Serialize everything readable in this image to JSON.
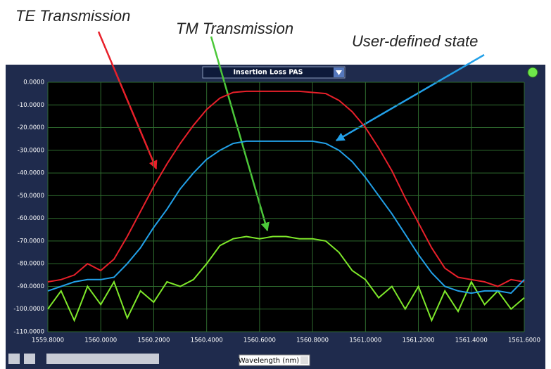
{
  "chart_data": {
    "type": "line",
    "plot_selector": "Insertion Loss PAS",
    "xlabel": "Wavelength (nm)",
    "x": [
      1559.8,
      1559.85,
      1559.9,
      1559.95,
      1560.0,
      1560.05,
      1560.1,
      1560.15,
      1560.2,
      1560.25,
      1560.3,
      1560.35,
      1560.4,
      1560.45,
      1560.5,
      1560.55,
      1560.6,
      1560.65,
      1560.7,
      1560.75,
      1560.8,
      1560.85,
      1560.9,
      1560.95,
      1561.0,
      1561.05,
      1561.1,
      1561.15,
      1561.2,
      1561.25,
      1561.3,
      1561.35,
      1561.4,
      1561.45,
      1561.5,
      1561.55,
      1561.6
    ],
    "series": [
      {
        "name": "TE Transmission",
        "color": "#e8202a",
        "values": [
          -88,
          -87,
          -85,
          -80,
          -83,
          -78,
          -68,
          -57,
          -46,
          -36,
          -27,
          -19,
          -12,
          -7,
          -4.5,
          -4,
          -4,
          -4,
          -4,
          -4,
          -4.5,
          -5,
          -8,
          -13,
          -20,
          -29,
          -39,
          -51,
          -62,
          -73,
          -82,
          -86,
          -87,
          -88,
          -90,
          -87,
          -88
        ]
      },
      {
        "name": "TM Transmission",
        "color": "#7ee82a",
        "values": [
          -100,
          -92,
          -105,
          -90,
          -98,
          -88,
          -104,
          -92,
          -97,
          -88,
          -90,
          -87,
          -80,
          -72,
          -69,
          -68,
          -69,
          -68,
          -68,
          -69,
          -69,
          -70,
          -75,
          -83,
          -87,
          -95,
          -90,
          -100,
          -90,
          -105,
          -92,
          -101,
          -88,
          -98,
          -92,
          -100,
          -95
        ]
      },
      {
        "name": "User-defined state",
        "color": "#22a0e8",
        "values": [
          -92,
          -90,
          -88,
          -87,
          -87,
          -86,
          -80,
          -73,
          -64,
          -56,
          -47,
          -40,
          -34,
          -30,
          -27,
          -26,
          -26,
          -26,
          -26,
          -26,
          -26,
          -27,
          -30,
          -35,
          -42,
          -50,
          -58,
          -67,
          -76,
          -84,
          -90,
          -92,
          -93,
          -92,
          -92,
          -93,
          -87
        ]
      }
    ],
    "xlim": [
      1559.8,
      1561.6
    ],
    "ylim": [
      -110,
      0
    ],
    "xticks": [
      {
        "value": 1559.8,
        "label": "1559.8000"
      },
      {
        "value": 1560.0,
        "label": "1560.0000"
      },
      {
        "value": 1560.2,
        "label": "1560.2000"
      },
      {
        "value": 1560.4,
        "label": "1560.4000"
      },
      {
        "value": 1560.6,
        "label": "1560.6000"
      },
      {
        "value": 1560.8,
        "label": "1560.8000"
      },
      {
        "value": 1561.0,
        "label": "1561.0000"
      },
      {
        "value": 1561.2,
        "label": "1561.2000"
      },
      {
        "value": 1561.4,
        "label": "1561.4000"
      },
      {
        "value": 1561.6,
        "label": "1561.6000"
      }
    ],
    "yticks": [
      {
        "value": 0,
        "label": "0.0000"
      },
      {
        "value": -10,
        "label": "-10.0000"
      },
      {
        "value": -20,
        "label": "-20.0000"
      },
      {
        "value": -30,
        "label": "-30.0000"
      },
      {
        "value": -40,
        "label": "-40.0000"
      },
      {
        "value": -50,
        "label": "-50.0000"
      },
      {
        "value": -60,
        "label": "-60.0000"
      },
      {
        "value": -70,
        "label": "-70.0000"
      },
      {
        "value": -80,
        "label": "-80.0000"
      },
      {
        "value": -90,
        "label": "-90.0000"
      },
      {
        "value": -100,
        "label": "-100.0000"
      },
      {
        "value": -110,
        "label": "-110.0000"
      }
    ],
    "grid": true
  }
}
